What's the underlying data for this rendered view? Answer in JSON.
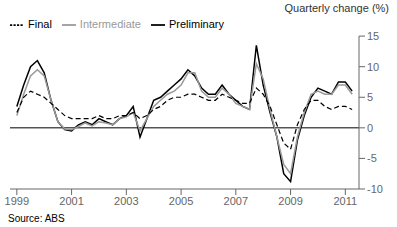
{
  "chart_data": {
    "type": "line",
    "title": "Quarterly change (%)",
    "annotations": [
      "Source: ABS"
    ],
    "x": [
      1999.0,
      1999.25,
      1999.5,
      1999.75,
      2000.0,
      2000.25,
      2000.5,
      2000.75,
      2001.0,
      2001.25,
      2001.5,
      2001.75,
      2002.0,
      2002.25,
      2002.5,
      2002.75,
      2003.0,
      2003.25,
      2003.5,
      2003.75,
      2004.0,
      2004.25,
      2004.5,
      2004.75,
      2005.0,
      2005.25,
      2005.5,
      2005.75,
      2006.0,
      2006.25,
      2006.5,
      2006.75,
      2007.0,
      2007.25,
      2007.5,
      2007.75,
      2008.0,
      2008.25,
      2008.5,
      2008.75,
      2009.0,
      2009.25,
      2009.5,
      2009.75,
      2010.0,
      2010.25,
      2010.5,
      2010.75,
      2011.0,
      2011.25
    ],
    "series": [
      {
        "name": "Preliminary",
        "color": "#000000",
        "line_style": "solid",
        "values": [
          3.5,
          7.0,
          10.0,
          11.0,
          9.0,
          4.5,
          1.0,
          -0.3,
          -0.5,
          0.5,
          1.0,
          0.5,
          1.5,
          1.0,
          0.5,
          1.5,
          2.0,
          3.5,
          -1.5,
          1.5,
          4.5,
          5.0,
          6.0,
          7.0,
          8.0,
          9.5,
          8.5,
          6.5,
          5.5,
          5.5,
          7.0,
          5.5,
          4.5,
          3.5,
          3.0,
          13.5,
          7.0,
          2.5,
          -1.5,
          -7.5,
          -8.8,
          -2.0,
          2.0,
          5.0,
          6.5,
          6.0,
          5.5,
          7.5,
          7.5,
          6.0
        ]
      },
      {
        "name": "Intermediate",
        "color": "#999999",
        "line_style": "solid",
        "values": [
          2.0,
          5.5,
          8.5,
          9.5,
          8.5,
          4.5,
          1.0,
          -0.2,
          -0.3,
          0.2,
          0.8,
          0.3,
          1.0,
          0.8,
          0.5,
          1.5,
          1.8,
          2.5,
          -0.5,
          1.5,
          3.5,
          4.5,
          5.5,
          6.0,
          7.0,
          9.0,
          9.0,
          6.0,
          5.0,
          5.0,
          6.5,
          5.5,
          4.0,
          3.5,
          3.0,
          10.5,
          8.0,
          3.0,
          -1.5,
          -6.0,
          -7.5,
          -1.5,
          2.5,
          5.5,
          6.0,
          5.5,
          5.5,
          7.0,
          7.0,
          5.5
        ]
      },
      {
        "name": "Final",
        "color": "#000000",
        "line_style": "dashed",
        "values": [
          2.5,
          5.0,
          6.0,
          5.5,
          5.0,
          4.0,
          3.0,
          2.0,
          1.5,
          1.5,
          1.5,
          1.5,
          2.0,
          1.5,
          1.5,
          2.0,
          2.0,
          2.5,
          1.5,
          2.0,
          3.0,
          3.5,
          4.5,
          5.0,
          5.0,
          5.5,
          5.5,
          5.0,
          4.5,
          4.5,
          5.5,
          5.0,
          4.5,
          4.0,
          4.0,
          6.5,
          5.5,
          3.5,
          0.5,
          -2.5,
          -3.5,
          0.5,
          3.0,
          4.5,
          4.5,
          3.5,
          3.0,
          3.5,
          3.5,
          3.0
        ]
      }
    ],
    "xlim": [
      1998.75,
      2011.5
    ],
    "xticks": [
      1999,
      2001,
      2003,
      2005,
      2007,
      2009,
      2011
    ],
    "ylim": [
      -10,
      15
    ],
    "yticks": [
      -10,
      -5,
      0,
      5,
      10,
      15
    ],
    "grid": false,
    "legend": "upper left"
  }
}
